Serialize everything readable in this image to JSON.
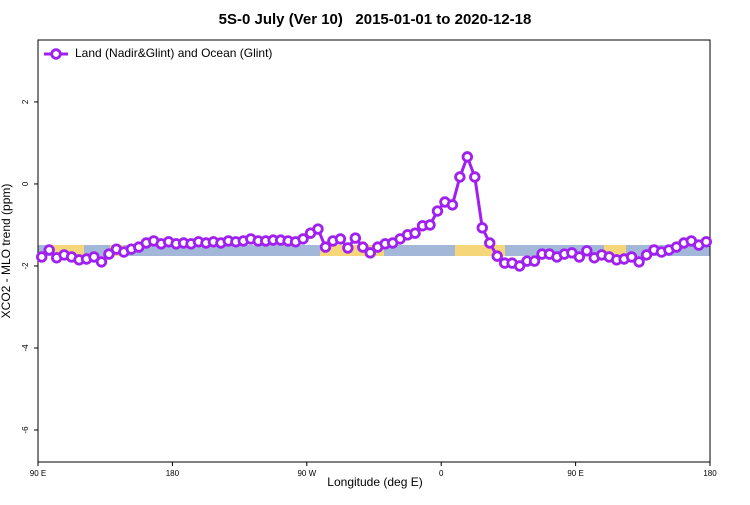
{
  "chart_data": {
    "type": "line",
    "title": "5S-0 July (Ver 10)   2015-01-01 to 2020-12-18",
    "x_label": "Longitude (deg E)",
    "y_label": "XCO2 - MLO trend (ppm)",
    "xlim": [
      90,
      540
    ],
    "xticks": [
      {
        "value": 90,
        "label": "90 E"
      },
      180,
      {
        "value": 270,
        "label": "90 W"
      },
      {
        "value": 360,
        "label": "0"
      },
      {
        "value": 450,
        "label": "90 E"
      },
      {
        "value": 540,
        "label": "180"
      }
    ],
    "ylim": [
      -6.78,
      3.51
    ],
    "yticks": [
      -6,
      -4,
      -2,
      0,
      2
    ],
    "legend": "top-left",
    "x": [
      92.5,
      97.5,
      102.5,
      107.5,
      112.5,
      117.5,
      122.5,
      127.5,
      132.5,
      137.5,
      142.5,
      147.5,
      152.5,
      157.5,
      162.5,
      167.5,
      172.5,
      177.5,
      182.5,
      187.5,
      192.5,
      197.5,
      202.5,
      207.5,
      212.5,
      217.5,
      222.5,
      227.5,
      232.5,
      237.5,
      242.5,
      247.5,
      252.5,
      257.5,
      262.5,
      267.5,
      272.5,
      277.5,
      282.5,
      287.5,
      292.5,
      297.5,
      302.5,
      307.5,
      312.5,
      317.5,
      322.5,
      327.5,
      332.5,
      337.5,
      342.5,
      347.5,
      352.5,
      357.5,
      362.5,
      367.5,
      372.5,
      377.5,
      382.5,
      387.5,
      392.5,
      397.5,
      402.5,
      407.5,
      412.5,
      417.5,
      422.5,
      427.5,
      432.5,
      437.5,
      442.5,
      447.5,
      452.5,
      457.5,
      462.5,
      467.5,
      472.5,
      477.5,
      482.5,
      487.5,
      492.5,
      497.5,
      502.5,
      507.5,
      512.5,
      517.5,
      522.5,
      527.5,
      532.5,
      537.5
    ],
    "series": [
      {
        "name": "Land (Nadir&Glint) and Ocean (Glint)",
        "color": "#a020f0",
        "values": [
          -1.78,
          -1.61,
          -1.8,
          -1.73,
          -1.78,
          -1.85,
          -1.83,
          -1.78,
          -1.9,
          -1.71,
          -1.59,
          -1.66,
          -1.59,
          -1.54,
          -1.44,
          -1.39,
          -1.46,
          -1.41,
          -1.46,
          -1.44,
          -1.46,
          -1.41,
          -1.44,
          -1.41,
          -1.44,
          -1.39,
          -1.41,
          -1.39,
          -1.34,
          -1.39,
          -1.39,
          -1.37,
          -1.37,
          -1.39,
          -1.41,
          -1.34,
          -1.2,
          -1.1,
          -1.54,
          -1.39,
          -1.34,
          -1.56,
          -1.32,
          -1.54,
          -1.68,
          -1.54,
          -1.46,
          -1.44,
          -1.34,
          -1.24,
          -1.2,
          -1.02,
          -1.0,
          -0.66,
          -0.44,
          -0.51,
          0.17,
          0.66,
          0.17,
          -1.07,
          -1.44,
          -1.76,
          -1.93,
          -1.93,
          -2.0,
          -1.88,
          -1.88,
          -1.71,
          -1.71,
          -1.78,
          -1.71,
          -1.68,
          -1.78,
          -1.63,
          -1.8,
          -1.73,
          -1.78,
          -1.85,
          -1.83,
          -1.78,
          -1.9,
          -1.73,
          -1.61,
          -1.66,
          -1.61,
          -1.54,
          -1.44,
          -1.39,
          -1.49,
          -1.41
        ]
      }
    ]
  }
}
